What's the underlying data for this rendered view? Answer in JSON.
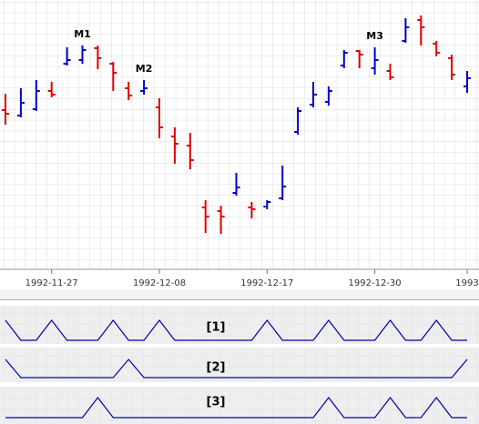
{
  "chart_data": [
    {
      "type": "ohlc",
      "categories": [
        null,
        null,
        null,
        "1992-11-27",
        null,
        null,
        null,
        null,
        null,
        null,
        "1992-12-08",
        null,
        null,
        null,
        null,
        null,
        null,
        "1992-12-17",
        null,
        null,
        null,
        null,
        null,
        null,
        "1992-12-30",
        null,
        null,
        null,
        null,
        null,
        "1993"
      ],
      "open": [
        174,
        168,
        175,
        195,
        225,
        229,
        242,
        225,
        198,
        195,
        177,
        145,
        135,
        67,
        63,
        83,
        67,
        68,
        77,
        150,
        180,
        183,
        223,
        239,
        220,
        217,
        250,
        273,
        247,
        231,
        200
      ],
      "high": [
        192,
        198,
        207,
        205,
        243,
        245,
        245,
        227,
        205,
        207,
        187,
        155,
        149,
        75,
        69,
        105,
        73,
        75,
        113,
        177,
        205,
        200,
        240,
        240,
        243,
        225,
        275,
        278,
        250,
        235,
        217
      ],
      "low": [
        158,
        166,
        173,
        188,
        223,
        225,
        219,
        195,
        185,
        191,
        143,
        115,
        109,
        39,
        38,
        80,
        55,
        65,
        75,
        147,
        177,
        179,
        220,
        220,
        213,
        207,
        248,
        245,
        233,
        207,
        193
      ],
      "close": [
        170,
        182,
        195,
        191,
        229,
        240,
        231,
        215,
        190,
        198,
        155,
        137,
        119,
        57,
        57,
        89,
        65,
        73,
        90,
        173,
        191,
        195,
        237,
        235,
        229,
        210,
        265,
        265,
        237,
        213,
        209
      ],
      "up_color": "#0000cc",
      "down_color": "#e00000",
      "ylim": [
        0,
        295
      ],
      "annotations": [
        {
          "text": "M1",
          "index": 5
        },
        {
          "text": "M2",
          "index": 9
        },
        {
          "text": "M3",
          "index": 24
        }
      ],
      "grid": true
    },
    {
      "type": "line",
      "title": "[1]",
      "color": "#0000aa",
      "ylim": [
        0,
        1
      ],
      "values": [
        1,
        0,
        0,
        1,
        0,
        0,
        0,
        1,
        0,
        0,
        1,
        0,
        0,
        0,
        0,
        0,
        0,
        1,
        0,
        0,
        0,
        1,
        0,
        0,
        0,
        1,
        0,
        0,
        1,
        0,
        0
      ]
    },
    {
      "type": "line",
      "title": "[2]",
      "color": "#0000aa",
      "ylim": [
        0,
        1
      ],
      "values": [
        1,
        0,
        0,
        0,
        0,
        0,
        0,
        0,
        1,
        0,
        0,
        0,
        0,
        0,
        0,
        0,
        0,
        0,
        0,
        0,
        0,
        0,
        0,
        0,
        0,
        0,
        0,
        0,
        0,
        0,
        1
      ]
    },
    {
      "type": "line",
      "title": "[3]",
      "color": "#0000aa",
      "ylim": [
        0,
        1
      ],
      "values": [
        0,
        0,
        0,
        0,
        0,
        0,
        1,
        0,
        0,
        0,
        0,
        0,
        0,
        0,
        0,
        0,
        0,
        0,
        0,
        0,
        0,
        1,
        0,
        0,
        0,
        1,
        0,
        0,
        1,
        0,
        0
      ]
    }
  ]
}
